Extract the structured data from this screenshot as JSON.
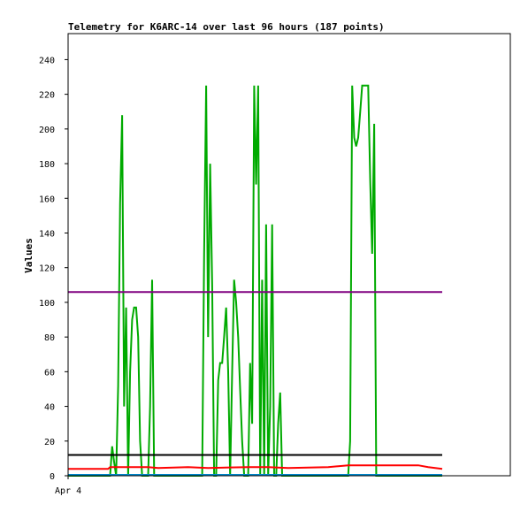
{
  "chart_data": {
    "type": "line",
    "title": "Telemetry for K6ARC-14 over last 96 hours (187 points)",
    "xlabel": "",
    "ylabel": "Values",
    "ylim": [
      0,
      255
    ],
    "yticks": [
      0,
      20,
      40,
      60,
      80,
      100,
      120,
      140,
      160,
      180,
      200,
      220,
      240
    ],
    "x_ticks": [
      {
        "x": 0,
        "label": "Apr 4"
      }
    ],
    "xlim": [
      0,
      187
    ],
    "grid": false,
    "legend": "none",
    "series": [
      {
        "color": "#00aa00",
        "values": [
          [
            0,
            0
          ],
          [
            21,
            0
          ],
          [
            22,
            17
          ],
          [
            23,
            8
          ],
          [
            24,
            0
          ],
          [
            25,
            52
          ],
          [
            26,
            157
          ],
          [
            27,
            208
          ],
          [
            28,
            40
          ],
          [
            29,
            97
          ],
          [
            30,
            0
          ],
          [
            31,
            60
          ],
          [
            32,
            90
          ],
          [
            33,
            97
          ],
          [
            34,
            97
          ],
          [
            35,
            80
          ],
          [
            36,
            20
          ],
          [
            37,
            0
          ],
          [
            40,
            0
          ],
          [
            41,
            40
          ],
          [
            42,
            113
          ],
          [
            43,
            0
          ],
          [
            65,
            0
          ],
          [
            67,
            0
          ],
          [
            68,
            128
          ],
          [
            69,
            225
          ],
          [
            70,
            80
          ],
          [
            71,
            180
          ],
          [
            72,
            110
          ],
          [
            73,
            0
          ],
          [
            74,
            0
          ],
          [
            75,
            55
          ],
          [
            76,
            65
          ],
          [
            77,
            65
          ],
          [
            78,
            80
          ],
          [
            79,
            97
          ],
          [
            80,
            60
          ],
          [
            81,
            0
          ],
          [
            82,
            60
          ],
          [
            83,
            113
          ],
          [
            84,
            100
          ],
          [
            85,
            80
          ],
          [
            86,
            50
          ],
          [
            87,
            20
          ],
          [
            88,
            0
          ],
          [
            90,
            0
          ],
          [
            91,
            65
          ],
          [
            92,
            30
          ],
          [
            93,
            225
          ],
          [
            94,
            168
          ],
          [
            95,
            225
          ],
          [
            96,
            0
          ],
          [
            97,
            113
          ],
          [
            98,
            0
          ],
          [
            99,
            145
          ],
          [
            100,
            0
          ],
          [
            101,
            40
          ],
          [
            102,
            145
          ],
          [
            103,
            0
          ],
          [
            104,
            0
          ],
          [
            105,
            30
          ],
          [
            106,
            48
          ],
          [
            107,
            0
          ],
          [
            140,
            0
          ],
          [
            141,
            20
          ],
          [
            142,
            225
          ],
          [
            143,
            195
          ],
          [
            144,
            190
          ],
          [
            145,
            195
          ],
          [
            146,
            210
          ],
          [
            147,
            225
          ],
          [
            150,
            225
          ],
          [
            151,
            170
          ],
          [
            152,
            128
          ],
          [
            153,
            203
          ],
          [
            154,
            0
          ],
          [
            187,
            0
          ]
        ]
      },
      {
        "color": "#ff0000",
        "values": [
          [
            0,
            4
          ],
          [
            20,
            4
          ],
          [
            21,
            5
          ],
          [
            40,
            5
          ],
          [
            45,
            4.5
          ],
          [
            60,
            5
          ],
          [
            70,
            4.5
          ],
          [
            90,
            5
          ],
          [
            100,
            5
          ],
          [
            110,
            4.5
          ],
          [
            130,
            5
          ],
          [
            140,
            6
          ],
          [
            160,
            6
          ],
          [
            175,
            6
          ],
          [
            180,
            5
          ],
          [
            187,
            4
          ]
        ]
      },
      {
        "color": "#800080",
        "values": [
          [
            0,
            106
          ],
          [
            187,
            106
          ]
        ]
      },
      {
        "color": "#000000",
        "values": [
          [
            0,
            12
          ],
          [
            187,
            12
          ]
        ]
      },
      {
        "color": "#0088cc",
        "values": [
          [
            0,
            0.5
          ],
          [
            187,
            0.5
          ]
        ]
      }
    ]
  }
}
